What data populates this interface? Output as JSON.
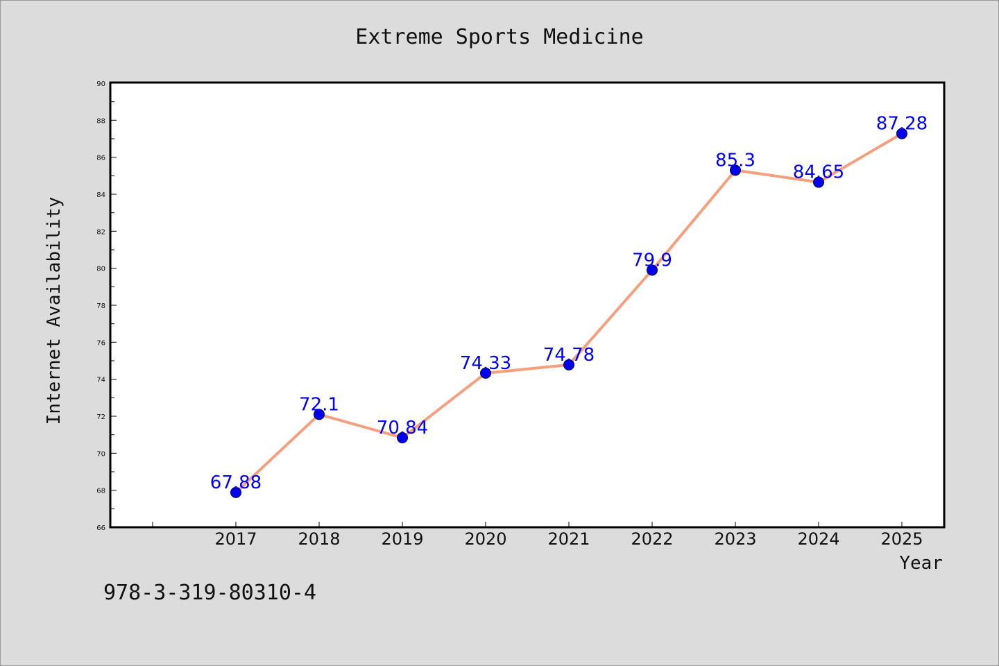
{
  "chart_data": {
    "type": "line",
    "title": "Extreme Sports Medicine",
    "xlabel": "Year",
    "ylabel": "Internet Availability",
    "categories": [
      "2017",
      "2018",
      "2019",
      "2020",
      "2021",
      "2022",
      "2023",
      "2024",
      "2025"
    ],
    "series": [
      {
        "values": [
          67.88,
          72.1,
          70.84,
          74.33,
          74.78,
          79.9,
          85.3,
          84.65,
          87.28
        ],
        "labels": [
          "67.88",
          "72.1",
          "70.84",
          "74.33",
          "74.78",
          "79.9",
          "85.3",
          "84.65",
          "87.28"
        ]
      }
    ],
    "ylim": [
      66,
      90
    ],
    "yticks": [
      "66",
      "68",
      "70",
      "72",
      "74",
      "76",
      "78",
      "80",
      "82",
      "84",
      "86",
      "88",
      "90"
    ],
    "grid": false,
    "line_color": "#f4a07e",
    "marker_color": "#0000ee",
    "label_color": "#0000ff"
  },
  "footer": {
    "isbn": "978-3-319-80310-4"
  }
}
